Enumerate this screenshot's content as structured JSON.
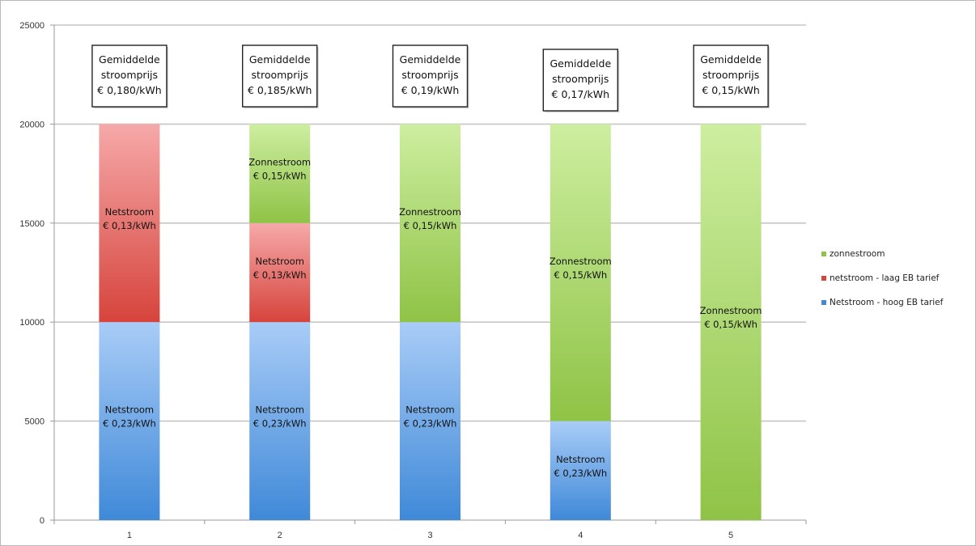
{
  "chart_data": {
    "type": "bar",
    "stacked": true,
    "categories": [
      "1",
      "2",
      "3",
      "4",
      "5"
    ],
    "ylim": [
      0,
      25000
    ],
    "yticks": [
      0,
      5000,
      10000,
      15000,
      20000,
      25000
    ],
    "grid": true,
    "legend_position": "right",
    "title": "",
    "xlabel": "",
    "ylabel": "",
    "series": [
      {
        "name": "Netstroom - hoog EB tarief",
        "color_top": "#a9ccf7",
        "color_bottom": "#3f89d8",
        "values": [
          10000,
          10000,
          10000,
          5000,
          0
        ],
        "labels": [
          "Netstroom\n€ 0,23/kWh",
          "Netstroom\n€ 0,23/kWh",
          "Netstroom\n€ 0,23/kWh",
          "Netstroom\n€ 0,23/kWh",
          ""
        ]
      },
      {
        "name": "netstroom - laag EB tarief",
        "color_top": "#f6a9a9",
        "color_bottom": "#d6443c",
        "values": [
          10000,
          5000,
          0,
          0,
          0
        ],
        "labels": [
          "Netstroom\n€ 0,13/kWh",
          "Netstroom\n€ 0,13/kWh",
          "",
          "",
          ""
        ]
      },
      {
        "name": "zonnestroom",
        "color_top": "#cdeea0",
        "color_bottom": "#8fc346",
        "values": [
          0,
          5000,
          10000,
          15000,
          20000
        ],
        "labels": [
          "",
          "Zonnestroom\n€ 0,15/kWh",
          "Zonnestroom\n€ 0,15/kWh",
          "Zonnestroom\n€ 0,15/kWh",
          "Zonnestroom\n€ 0,15/kWh"
        ]
      }
    ],
    "annotations": [
      "Gemiddelde\nstroomprijs\n€ 0,180/kWh",
      "Gemiddelde\nstroomprijs\n€ 0,185/kWh",
      "Gemiddelde\nstroomprijs\n€ 0,19/kWh",
      "Gemiddelde\nstroomprijs\n€ 0,17/kWh",
      "Gemiddelde\nstroomprijs\n€ 0,15/kWh"
    ],
    "legend_order": [
      "zonnestroom",
      "netstroom - laag EB tarief",
      "Netstroom - hoog EB tarief"
    ]
  }
}
